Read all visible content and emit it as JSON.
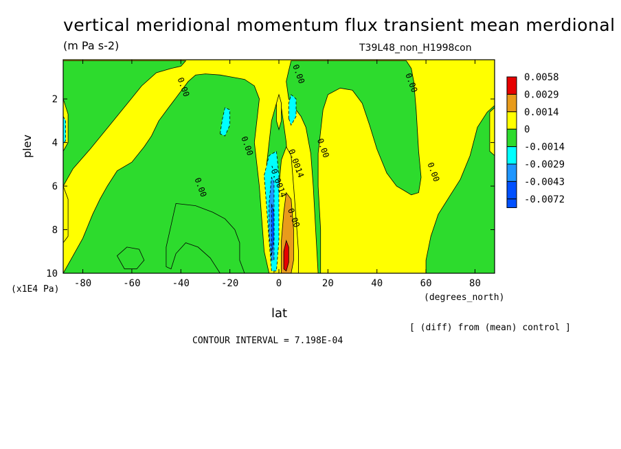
{
  "chart_data": {
    "type": "heatmap",
    "title": "vertical meridional momentum flux transient mean merdional",
    "subtitle": "(m Pa s-2)",
    "run_label": "T39L48_non_H1998con",
    "xlabel": "lat",
    "x_units": "(degrees_north)",
    "ylabel": "plev",
    "y_units": "(x1E4 Pa)",
    "xlim": [
      -88,
      88
    ],
    "ylim": [
      10,
      0.2
    ],
    "x_ticks": [
      -80,
      -60,
      -40,
      -20,
      0,
      20,
      40,
      60,
      80
    ],
    "y_ticks": [
      2,
      4,
      6,
      8,
      10
    ],
    "x_tick_labels": [
      "-80",
      "-60",
      "-40",
      "-20",
      "0",
      "20",
      "40",
      "60",
      "80"
    ],
    "y_tick_labels": [
      "2",
      "4",
      "6",
      "8",
      "10"
    ],
    "grid": false,
    "colorbar": [
      {
        "label": "0.0058",
        "color": "#e60000"
      },
      {
        "label": "0.0029",
        "color": "#e89b1b"
      },
      {
        "label": "0.0014",
        "color": "#ffff00"
      },
      {
        "label": "0",
        "color": "#2ddb2d"
      },
      {
        "label": "-0.0014",
        "color": "#00ffff"
      },
      {
        "label": "-0.0029",
        "color": "#1e96ff"
      },
      {
        "label": "-0.0043",
        "color": "#0050ff"
      },
      {
        "label": "-0.0072",
        "color": ""
      }
    ],
    "regions": [
      {
        "level": "0",
        "points": [
          [
            -88,
            10
          ],
          [
            -84,
            9.2
          ],
          [
            -80,
            8.4
          ],
          [
            -76,
            7.3
          ],
          [
            -73,
            6.6
          ],
          [
            -70,
            6.0
          ],
          [
            -66,
            5.3
          ],
          [
            -60,
            4.9
          ],
          [
            -55,
            4.2
          ],
          [
            -52,
            3.7
          ],
          [
            -49,
            3.0
          ],
          [
            -45,
            2.4
          ],
          [
            -41,
            1.8
          ],
          [
            -37,
            1.2
          ],
          [
            -34,
            0.9
          ],
          [
            -30,
            0.85
          ],
          [
            -24,
            0.9
          ],
          [
            -19,
            1.0
          ],
          [
            -14,
            1.1
          ],
          [
            -10,
            1.4
          ],
          [
            -8,
            2.0
          ],
          [
            -9,
            3.0
          ],
          [
            -10,
            4.0
          ],
          [
            -9,
            5.0
          ],
          [
            -8,
            6.0
          ],
          [
            -7,
            7.5
          ],
          [
            -6,
            9.0
          ],
          [
            -4,
            10
          ],
          [
            -88,
            10
          ]
        ]
      },
      {
        "level": "0",
        "points": [
          [
            -1,
            10
          ],
          [
            -2,
            8.5
          ],
          [
            -3,
            7.0
          ],
          [
            -5,
            5.0
          ],
          [
            -3,
            3.0
          ],
          [
            -1,
            2.2
          ],
          [
            1,
            2.4
          ],
          [
            3,
            4.0
          ],
          [
            4,
            6.0
          ],
          [
            6,
            8.0
          ],
          [
            7,
            10
          ],
          [
            -1,
            10
          ]
        ]
      },
      {
        "level": "0",
        "points": [
          [
            5,
            0.25
          ],
          [
            4,
            0.7
          ],
          [
            3,
            1.2
          ],
          [
            4,
            2.0
          ],
          [
            7,
            2.5
          ],
          [
            9,
            2.8
          ],
          [
            11,
            3.3
          ],
          [
            13,
            4.5
          ],
          [
            14,
            6.0
          ],
          [
            15,
            8.0
          ],
          [
            16,
            10
          ],
          [
            17,
            10
          ],
          [
            17,
            8
          ],
          [
            16,
            6
          ],
          [
            16,
            4.5
          ],
          [
            18,
            2.5
          ],
          [
            20,
            1.8
          ],
          [
            25,
            1.5
          ],
          [
            30,
            1.6
          ],
          [
            34,
            2.2
          ],
          [
            37,
            3.2
          ],
          [
            40,
            4.3
          ],
          [
            44,
            5.4
          ],
          [
            48,
            6.0
          ],
          [
            51,
            6.2
          ],
          [
            54,
            6.4
          ],
          [
            57,
            6.3
          ],
          [
            58,
            5.6
          ],
          [
            57,
            4.4
          ],
          [
            56,
            2.5
          ],
          [
            55,
            1.2
          ],
          [
            54,
            0.6
          ],
          [
            52,
            0.25
          ],
          [
            5,
            0.25
          ]
        ]
      },
      {
        "level": "0",
        "points": [
          [
            -42,
            6.8
          ],
          [
            -34,
            6.9
          ],
          [
            -27,
            7.2
          ],
          [
            -22,
            7.5
          ],
          [
            -18,
            8.0
          ],
          [
            -16,
            8.6
          ],
          [
            -16,
            9.4
          ],
          [
            -14,
            10
          ],
          [
            -24,
            10
          ],
          [
            -28,
            9.3
          ],
          [
            -33,
            8.8
          ],
          [
            -38,
            8.6
          ],
          [
            -42,
            9.1
          ],
          [
            -44,
            9.8
          ],
          [
            -46,
            9.7
          ],
          [
            -46,
            8.8
          ],
          [
            -44,
            7.8
          ],
          [
            -42,
            6.8
          ]
        ]
      },
      {
        "level": "0",
        "points": [
          [
            60,
            10
          ],
          [
            60,
            9.4
          ],
          [
            62,
            8.3
          ],
          [
            65,
            7.3
          ],
          [
            70,
            6.4
          ],
          [
            74,
            5.7
          ],
          [
            78,
            4.6
          ],
          [
            81,
            3.3
          ],
          [
            85,
            2.6
          ],
          [
            88,
            2.3
          ],
          [
            88,
            10
          ],
          [
            60,
            10
          ]
        ]
      },
      {
        "level": "0",
        "points": [
          [
            -88,
            0.25
          ],
          [
            -88,
            6.0
          ],
          [
            -84,
            5.2
          ],
          [
            -77,
            4.3
          ],
          [
            -69,
            3.2
          ],
          [
            -61,
            2.1
          ],
          [
            -56,
            1.4
          ],
          [
            -50,
            0.8
          ],
          [
            -44,
            0.6
          ],
          [
            -40,
            0.5
          ],
          [
            -38,
            0.25
          ],
          [
            -88,
            0.25
          ]
        ]
      },
      {
        "level": "0",
        "points": [
          [
            -66,
            9.2
          ],
          [
            -62,
            8.8
          ],
          [
            -57,
            8.9
          ],
          [
            -55,
            9.4
          ],
          [
            -58,
            9.8
          ],
          [
            -63,
            9.8
          ],
          [
            -66,
            9.2
          ]
        ]
      },
      {
        "level": "0.0014",
        "points": [
          [
            -2,
            10
          ],
          [
            -2,
            8.8
          ],
          [
            -1,
            7.5
          ],
          [
            0,
            6.0
          ],
          [
            1,
            4.8
          ],
          [
            3,
            4.2
          ],
          [
            5,
            4.6
          ],
          [
            6,
            6.0
          ],
          [
            7,
            7.5
          ],
          [
            8,
            9.0
          ],
          [
            8,
            10
          ],
          [
            -2,
            10
          ]
        ]
      },
      {
        "level": "0.0014",
        "points": [
          [
            -1,
            3.0
          ],
          [
            -1,
            2.2
          ],
          [
            0,
            1.8
          ],
          [
            1,
            2.2
          ],
          [
            1,
            3.0
          ],
          [
            0,
            3.4
          ],
          [
            -1,
            3.0
          ]
        ]
      },
      {
        "level": "0.0014",
        "points": [
          [
            -88,
            2.0
          ],
          [
            -86,
            2.7
          ],
          [
            -86,
            4.0
          ],
          [
            -88,
            4.4
          ],
          [
            -88,
            2.0
          ]
        ]
      },
      {
        "level": "0.0014",
        "points": [
          [
            -88,
            6.0
          ],
          [
            -86,
            6.6
          ],
          [
            -86,
            8.3
          ],
          [
            -88,
            8.6
          ],
          [
            -88,
            6.0
          ]
        ]
      },
      {
        "level": "0.0014",
        "points": [
          [
            86,
            2.6
          ],
          [
            88,
            2.4
          ],
          [
            88,
            4.6
          ],
          [
            86,
            4.4
          ],
          [
            86,
            2.6
          ]
        ]
      },
      {
        "level": "0.0029",
        "points": [
          [
            1,
            10
          ],
          [
            1,
            8.5
          ],
          [
            2,
            7.2
          ],
          [
            3,
            6.3
          ],
          [
            5,
            6.6
          ],
          [
            6,
            8.0
          ],
          [
            6,
            9.4
          ],
          [
            5,
            10
          ],
          [
            1,
            10
          ]
        ]
      },
      {
        "level": "0.0058",
        "points": [
          [
            2,
            9.8
          ],
          [
            2,
            9.0
          ],
          [
            3,
            8.5
          ],
          [
            4,
            8.8
          ],
          [
            4,
            9.5
          ],
          [
            3,
            9.9
          ],
          [
            2,
            9.8
          ]
        ]
      },
      {
        "level": "-0.0014",
        "points": [
          [
            -3,
            9.9
          ],
          [
            -4,
            8.5
          ],
          [
            -5,
            7.0
          ],
          [
            -6,
            5.5
          ],
          [
            -4,
            4.6
          ],
          [
            -1,
            4.4
          ],
          [
            0,
            5.5
          ],
          [
            0,
            7.0
          ],
          [
            0,
            8.5
          ],
          [
            -1,
            9.9
          ],
          [
            -3,
            9.9
          ]
        ]
      },
      {
        "level": "-0.0014",
        "points": [
          [
            -24,
            3.6
          ],
          [
            -23,
            2.9
          ],
          [
            -22,
            2.4
          ],
          [
            -20,
            2.5
          ],
          [
            -20,
            3.2
          ],
          [
            -22,
            3.7
          ],
          [
            -24,
            3.6
          ]
        ]
      },
      {
        "level": "-0.0014",
        "points": [
          [
            4,
            2.9
          ],
          [
            4,
            2.2
          ],
          [
            5,
            1.8
          ],
          [
            7,
            2.0
          ],
          [
            7,
            2.8
          ],
          [
            5,
            3.2
          ],
          [
            4,
            2.9
          ]
        ]
      },
      {
        "level": "-0.0014",
        "points": [
          [
            -88,
            2.8
          ],
          [
            -87,
            3.0
          ],
          [
            -87,
            3.9
          ],
          [
            -88,
            4.1
          ],
          [
            -88,
            2.8
          ]
        ]
      },
      {
        "level": "-0.0029",
        "points": [
          [
            -3,
            9.4
          ],
          [
            -4,
            8.2
          ],
          [
            -4,
            6.8
          ],
          [
            -3,
            5.6
          ],
          [
            -2,
            5.8
          ],
          [
            -2,
            7.2
          ],
          [
            -2,
            8.6
          ],
          [
            -2,
            9.4
          ],
          [
            -3,
            9.4
          ]
        ]
      },
      {
        "level": "-0.0043",
        "points": [
          [
            -3,
            9.2
          ],
          [
            -3,
            8.0
          ],
          [
            -3,
            6.8
          ],
          [
            -2,
            7.2
          ],
          [
            -2,
            8.4
          ],
          [
            -3,
            9.2
          ]
        ]
      }
    ],
    "contour_labels": [
      {
        "text": "0.00",
        "x": 7,
        "y": 0.9
      },
      {
        "text": "0.00",
        "x": -40,
        "y": 1.5
      },
      {
        "text": "0.00",
        "x": 53,
        "y": 1.3
      },
      {
        "text": "0.00",
        "x": -14,
        "y": 4.2
      },
      {
        "text": "0.00",
        "x": 17,
        "y": 4.3
      },
      {
        "text": "0.00",
        "x": 62,
        "y": 5.4
      },
      {
        "text": "0.00",
        "x": -33,
        "y": 6.1
      },
      {
        "text": "-0.0014",
        "x": -1.5,
        "y": 5.8
      },
      {
        "text": "0.0014",
        "x": 6,
        "y": 5.0
      },
      {
        "text": "0.00",
        "x": 5,
        "y": 7.5
      }
    ],
    "contour_interval_text": "CONTOUR INTERVAL = 7.198E-04",
    "note": "[ (diff) from (mean) control ]"
  }
}
